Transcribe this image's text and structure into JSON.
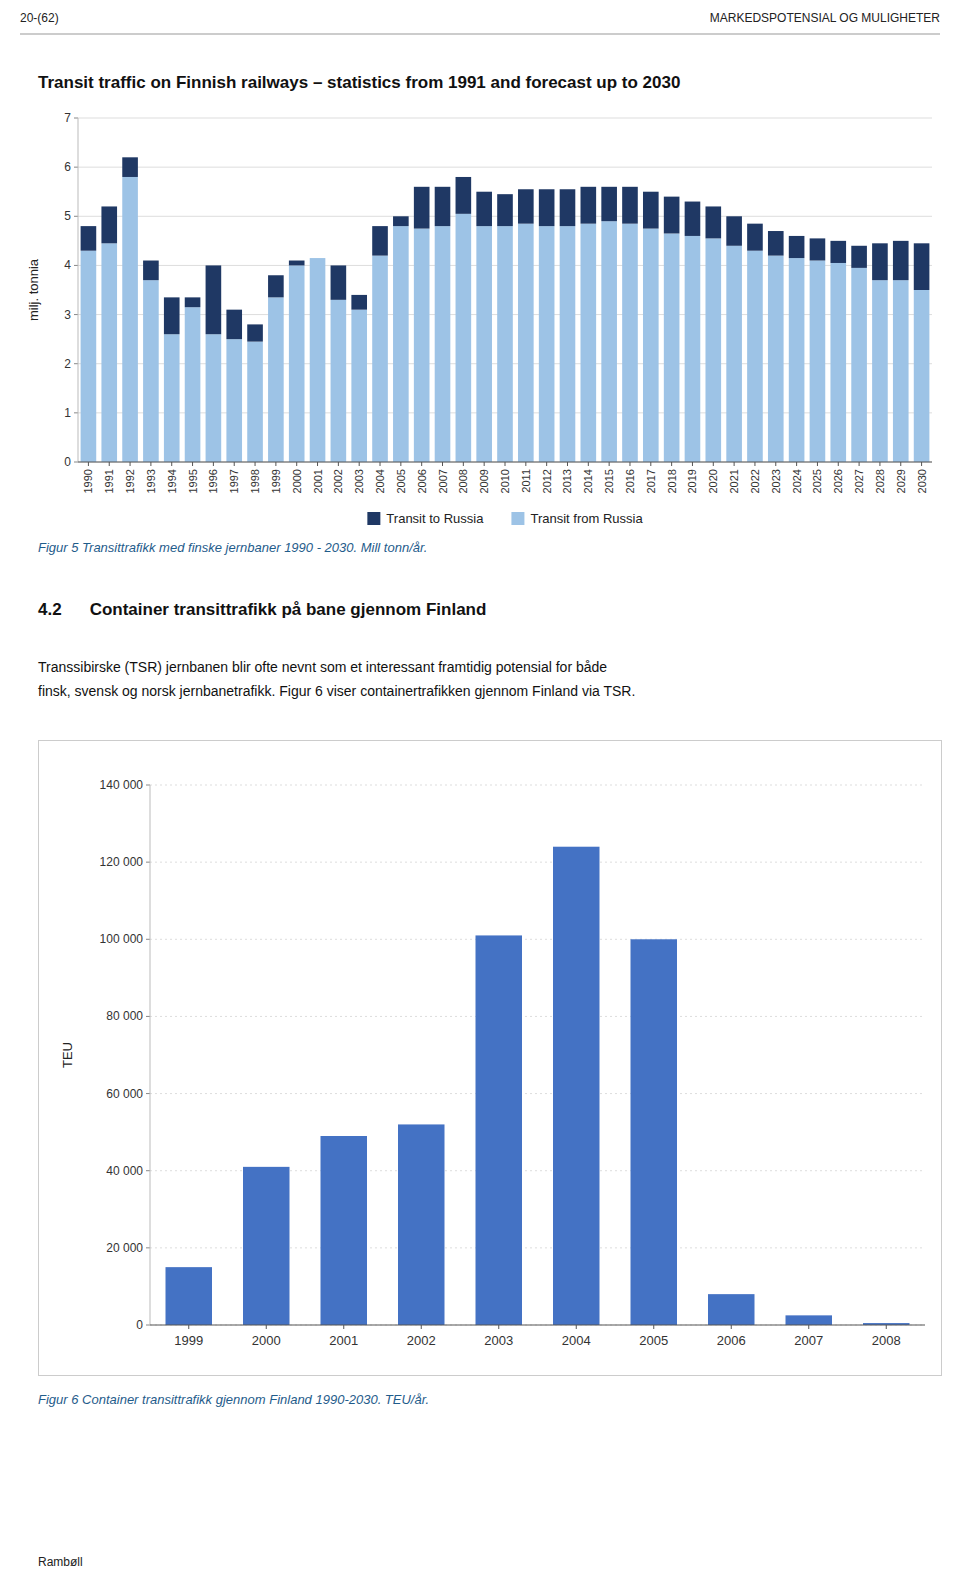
{
  "page": {
    "header_left": "20-(62)",
    "header_right": "MARKEDSPOTENSIAL OG MULIGHETER",
    "section_number": "4.2",
    "section_title": "Container transittrafikk på bane gjennom Finland",
    "body": [
      "Transsibirske (TSR) jernbanen blir ofte nevnt som et interessant framtidig potensial for både",
      "finsk, svensk og norsk jernbanetrafikk. Figur 6 viser containertrafikken gjennom Finland via TSR."
    ],
    "captions": [
      "Figur 5 Transittrafikk med finske jernbaner 1990 - 2030. Mill tonn/år.",
      "Figur 6 Container transittrafikk gjennom Finland 1990-2030. TEU/år."
    ],
    "caption_color": "#1F5C8B",
    "footer": "Rambøll"
  },
  "chart_data": [
    {
      "type": "bar",
      "title": "Transit traffic on Finnish railways – statistics from 1991 and forecast up to 2030",
      "y_label": "milj. tonnia",
      "categories": [
        1990,
        1991,
        1992,
        1993,
        1994,
        1995,
        1996,
        1997,
        1998,
        1999,
        2000,
        2001,
        2002,
        2003,
        2004,
        2005,
        2006,
        2007,
        2008,
        2009,
        2010,
        2011,
        2012,
        2013,
        2014,
        2015,
        2016,
        2017,
        2018,
        2019,
        2020,
        2021,
        2022,
        2023,
        2024,
        2025,
        2026,
        2027,
        2028,
        2029,
        2030
      ],
      "series": [
        {
          "name": "Transit from Russia",
          "color": "#9DC3E6",
          "values": [
            4.3,
            4.45,
            5.8,
            3.7,
            2.6,
            3.15,
            2.6,
            2.5,
            2.45,
            3.35,
            4.0,
            4.15,
            3.3,
            3.1,
            4.2,
            4.8,
            4.75,
            4.8,
            5.05,
            4.8,
            4.8,
            4.85,
            4.8,
            4.8,
            4.85,
            4.9,
            4.85,
            4.75,
            4.65,
            4.6,
            4.55,
            4.4,
            4.3,
            4.2,
            4.15,
            4.1,
            4.05,
            3.95,
            3.7,
            3.7,
            3.5
          ]
        },
        {
          "name": "Transit to Russia",
          "color": "#1F3864",
          "values": [
            0.5,
            0.75,
            0.4,
            0.4,
            0.75,
            0.2,
            1.4,
            0.6,
            0.35,
            0.45,
            0.1,
            0.0,
            0.7,
            0.3,
            0.6,
            0.2,
            0.85,
            0.8,
            0.75,
            0.7,
            0.65,
            0.7,
            0.75,
            0.75,
            0.75,
            0.7,
            0.75,
            0.75,
            0.75,
            0.7,
            0.65,
            0.6,
            0.55,
            0.5,
            0.45,
            0.45,
            0.45,
            0.45,
            0.75,
            0.8,
            0.95
          ]
        }
      ],
      "stacked": true,
      "ylim": [
        0,
        7
      ],
      "yticks": [
        0,
        1,
        2,
        3,
        4,
        5,
        6,
        7
      ],
      "grid": true,
      "legend": "bottom"
    },
    {
      "type": "bar",
      "y_label": "TEU",
      "categories": [
        "1999",
        "2000",
        "2001",
        "2002",
        "2003",
        "2004",
        "2005",
        "2006",
        "2007",
        "2008"
      ],
      "values": [
        15000,
        41000,
        49000,
        52000,
        101000,
        124000,
        100000,
        8000,
        2500,
        500
      ],
      "color": "#4472C4",
      "ylim": [
        0,
        140000
      ],
      "yticks": [
        0,
        {
          "value": 20000,
          "label": "20 000"
        },
        {
          "value": 40000,
          "label": "40 000"
        },
        {
          "value": 60000,
          "label": "60 000"
        },
        {
          "value": 80000,
          "label": "80 000"
        },
        {
          "value": 100000,
          "label": "100 000"
        },
        {
          "value": 120000,
          "label": "120 000"
        },
        {
          "value": 140000,
          "label": "140 000"
        }
      ],
      "grid": true
    }
  ]
}
